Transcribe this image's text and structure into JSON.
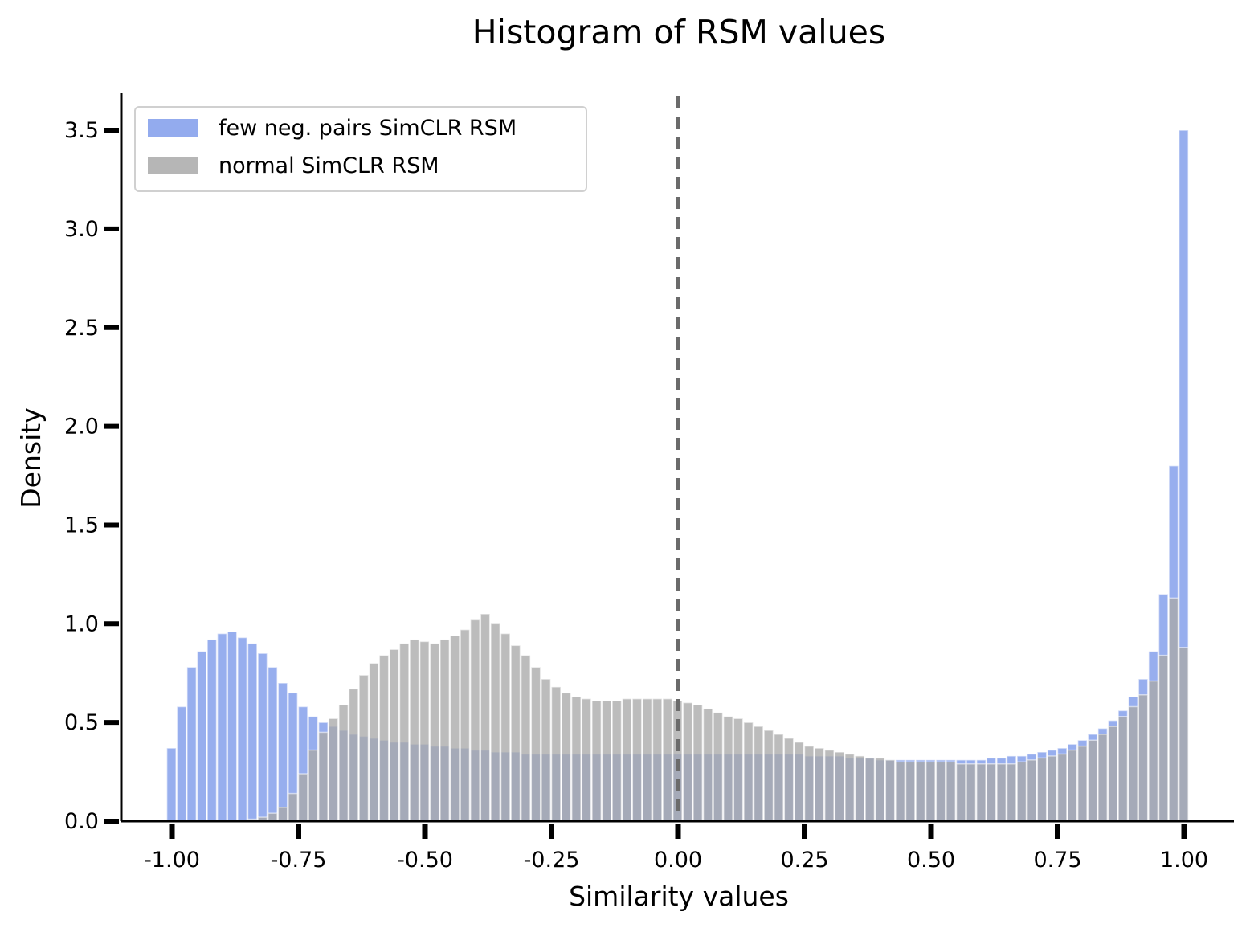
{
  "chart_data": {
    "type": "bar",
    "title": "Histogram of RSM values",
    "xlabel": "Similarity values",
    "ylabel": "Density",
    "xlim": [
      -1.1,
      1.1
    ],
    "ylim": [
      0,
      3.65
    ],
    "xticks": [
      -1.0,
      -0.75,
      -0.5,
      -0.25,
      0.0,
      0.25,
      0.5,
      0.75,
      1.0
    ],
    "xtick_labels": [
      "-1.00",
      "-0.75",
      "-0.50",
      "-0.25",
      "0.00",
      "0.25",
      "0.50",
      "0.75",
      "1.00"
    ],
    "yticks": [
      0.0,
      0.5,
      1.0,
      1.5,
      2.0,
      2.5,
      3.0,
      3.5
    ],
    "ytick_labels": [
      "0.0",
      "0.5",
      "1.0",
      "1.5",
      "2.0",
      "2.5",
      "3.0",
      "3.5"
    ],
    "vline_x": 0.0,
    "bin_width": 0.02,
    "legend_position": "top-left",
    "series": [
      {
        "name": "few neg. pairs SimCLR RSM",
        "color": "#6f8fe8",
        "bins": [
          [
            -1.0,
            0.37
          ],
          [
            -0.98,
            0.58
          ],
          [
            -0.96,
            0.78
          ],
          [
            -0.94,
            0.86
          ],
          [
            -0.92,
            0.92
          ],
          [
            -0.9,
            0.95
          ],
          [
            -0.88,
            0.96
          ],
          [
            -0.86,
            0.93
          ],
          [
            -0.84,
            0.9
          ],
          [
            -0.82,
            0.85
          ],
          [
            -0.8,
            0.78
          ],
          [
            -0.78,
            0.7
          ],
          [
            -0.76,
            0.65
          ],
          [
            -0.74,
            0.58
          ],
          [
            -0.72,
            0.53
          ],
          [
            -0.7,
            0.5
          ],
          [
            -0.68,
            0.48
          ],
          [
            -0.66,
            0.46
          ],
          [
            -0.64,
            0.44
          ],
          [
            -0.62,
            0.43
          ],
          [
            -0.6,
            0.42
          ],
          [
            -0.58,
            0.41
          ],
          [
            -0.56,
            0.4
          ],
          [
            -0.54,
            0.4
          ],
          [
            -0.52,
            0.39
          ],
          [
            -0.5,
            0.39
          ],
          [
            -0.48,
            0.38
          ],
          [
            -0.46,
            0.38
          ],
          [
            -0.44,
            0.37
          ],
          [
            -0.42,
            0.37
          ],
          [
            -0.4,
            0.36
          ],
          [
            -0.38,
            0.36
          ],
          [
            -0.36,
            0.35
          ],
          [
            -0.34,
            0.35
          ],
          [
            -0.32,
            0.35
          ],
          [
            -0.3,
            0.34
          ],
          [
            -0.28,
            0.34
          ],
          [
            -0.26,
            0.34
          ],
          [
            -0.24,
            0.34
          ],
          [
            -0.22,
            0.34
          ],
          [
            -0.2,
            0.34
          ],
          [
            -0.18,
            0.34
          ],
          [
            -0.16,
            0.34
          ],
          [
            -0.14,
            0.34
          ],
          [
            -0.12,
            0.34
          ],
          [
            -0.1,
            0.34
          ],
          [
            -0.08,
            0.34
          ],
          [
            -0.06,
            0.34
          ],
          [
            -0.04,
            0.34
          ],
          [
            -0.02,
            0.34
          ],
          [
            0.0,
            0.34
          ],
          [
            0.02,
            0.34
          ],
          [
            0.04,
            0.34
          ],
          [
            0.06,
            0.34
          ],
          [
            0.08,
            0.34
          ],
          [
            0.1,
            0.34
          ],
          [
            0.12,
            0.34
          ],
          [
            0.14,
            0.34
          ],
          [
            0.16,
            0.34
          ],
          [
            0.18,
            0.34
          ],
          [
            0.2,
            0.34
          ],
          [
            0.22,
            0.34
          ],
          [
            0.24,
            0.34
          ],
          [
            0.26,
            0.33
          ],
          [
            0.28,
            0.33
          ],
          [
            0.3,
            0.33
          ],
          [
            0.32,
            0.33
          ],
          [
            0.34,
            0.32
          ],
          [
            0.36,
            0.32
          ],
          [
            0.38,
            0.32
          ],
          [
            0.4,
            0.31
          ],
          [
            0.42,
            0.31
          ],
          [
            0.44,
            0.31
          ],
          [
            0.46,
            0.31
          ],
          [
            0.48,
            0.31
          ],
          [
            0.5,
            0.31
          ],
          [
            0.52,
            0.31
          ],
          [
            0.54,
            0.31
          ],
          [
            0.56,
            0.31
          ],
          [
            0.58,
            0.31
          ],
          [
            0.6,
            0.31
          ],
          [
            0.62,
            0.32
          ],
          [
            0.64,
            0.32
          ],
          [
            0.66,
            0.33
          ],
          [
            0.68,
            0.33
          ],
          [
            0.7,
            0.34
          ],
          [
            0.72,
            0.35
          ],
          [
            0.74,
            0.36
          ],
          [
            0.76,
            0.37
          ],
          [
            0.78,
            0.39
          ],
          [
            0.8,
            0.41
          ],
          [
            0.82,
            0.44
          ],
          [
            0.84,
            0.47
          ],
          [
            0.86,
            0.51
          ],
          [
            0.88,
            0.56
          ],
          [
            0.9,
            0.63
          ],
          [
            0.92,
            0.72
          ],
          [
            0.94,
            0.86
          ],
          [
            0.96,
            1.15
          ],
          [
            0.98,
            1.8
          ],
          [
            1.0,
            3.5
          ]
        ]
      },
      {
        "name": "normal SimCLR RSM",
        "color": "#a9a9a9",
        "bins": [
          [
            -1.0,
            0.0
          ],
          [
            -0.98,
            0.0
          ],
          [
            -0.96,
            0.0
          ],
          [
            -0.94,
            0.0
          ],
          [
            -0.92,
            0.0
          ],
          [
            -0.9,
            0.0
          ],
          [
            -0.88,
            0.0
          ],
          [
            -0.86,
            0.0
          ],
          [
            -0.84,
            0.01
          ],
          [
            -0.82,
            0.02
          ],
          [
            -0.8,
            0.04
          ],
          [
            -0.78,
            0.07
          ],
          [
            -0.76,
            0.14
          ],
          [
            -0.74,
            0.24
          ],
          [
            -0.72,
            0.36
          ],
          [
            -0.7,
            0.45
          ],
          [
            -0.68,
            0.52
          ],
          [
            -0.66,
            0.59
          ],
          [
            -0.64,
            0.67
          ],
          [
            -0.62,
            0.74
          ],
          [
            -0.6,
            0.8
          ],
          [
            -0.58,
            0.84
          ],
          [
            -0.56,
            0.87
          ],
          [
            -0.54,
            0.9
          ],
          [
            -0.52,
            0.92
          ],
          [
            -0.5,
            0.91
          ],
          [
            -0.48,
            0.9
          ],
          [
            -0.46,
            0.92
          ],
          [
            -0.44,
            0.94
          ],
          [
            -0.42,
            0.97
          ],
          [
            -0.4,
            1.02
          ],
          [
            -0.38,
            1.05
          ],
          [
            -0.36,
            1.0
          ],
          [
            -0.34,
            0.95
          ],
          [
            -0.32,
            0.89
          ],
          [
            -0.3,
            0.84
          ],
          [
            -0.28,
            0.78
          ],
          [
            -0.26,
            0.72
          ],
          [
            -0.24,
            0.68
          ],
          [
            -0.22,
            0.65
          ],
          [
            -0.2,
            0.63
          ],
          [
            -0.18,
            0.62
          ],
          [
            -0.16,
            0.61
          ],
          [
            -0.14,
            0.61
          ],
          [
            -0.12,
            0.61
          ],
          [
            -0.1,
            0.62
          ],
          [
            -0.08,
            0.62
          ],
          [
            -0.06,
            0.62
          ],
          [
            -0.04,
            0.62
          ],
          [
            -0.02,
            0.62
          ],
          [
            0.0,
            0.61
          ],
          [
            0.02,
            0.6
          ],
          [
            0.04,
            0.59
          ],
          [
            0.06,
            0.57
          ],
          [
            0.08,
            0.55
          ],
          [
            0.1,
            0.53
          ],
          [
            0.12,
            0.52
          ],
          [
            0.14,
            0.5
          ],
          [
            0.16,
            0.48
          ],
          [
            0.18,
            0.46
          ],
          [
            0.2,
            0.44
          ],
          [
            0.22,
            0.42
          ],
          [
            0.24,
            0.4
          ],
          [
            0.26,
            0.38
          ],
          [
            0.28,
            0.37
          ],
          [
            0.3,
            0.36
          ],
          [
            0.32,
            0.35
          ],
          [
            0.34,
            0.34
          ],
          [
            0.36,
            0.33
          ],
          [
            0.38,
            0.32
          ],
          [
            0.4,
            0.32
          ],
          [
            0.42,
            0.31
          ],
          [
            0.44,
            0.3
          ],
          [
            0.46,
            0.3
          ],
          [
            0.48,
            0.3
          ],
          [
            0.5,
            0.3
          ],
          [
            0.52,
            0.3
          ],
          [
            0.54,
            0.3
          ],
          [
            0.56,
            0.29
          ],
          [
            0.58,
            0.29
          ],
          [
            0.6,
            0.29
          ],
          [
            0.62,
            0.29
          ],
          [
            0.64,
            0.29
          ],
          [
            0.66,
            0.29
          ],
          [
            0.68,
            0.3
          ],
          [
            0.7,
            0.31
          ],
          [
            0.72,
            0.32
          ],
          [
            0.74,
            0.33
          ],
          [
            0.76,
            0.34
          ],
          [
            0.78,
            0.36
          ],
          [
            0.8,
            0.38
          ],
          [
            0.82,
            0.41
          ],
          [
            0.84,
            0.44
          ],
          [
            0.86,
            0.48
          ],
          [
            0.88,
            0.53
          ],
          [
            0.9,
            0.58
          ],
          [
            0.92,
            0.64
          ],
          [
            0.94,
            0.71
          ],
          [
            0.96,
            0.84
          ],
          [
            0.98,
            1.13
          ],
          [
            1.0,
            0.88
          ]
        ]
      }
    ]
  }
}
